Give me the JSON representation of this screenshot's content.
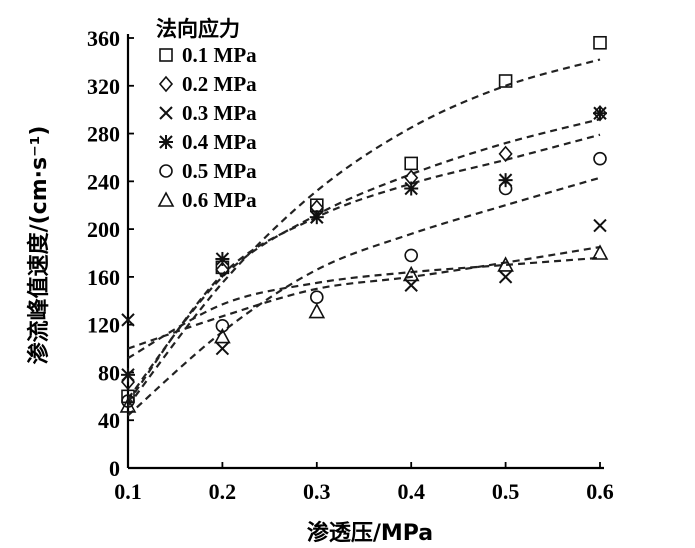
{
  "chart_data": {
    "type": "scatter",
    "title": "",
    "xlabel": "渗透压/MPa",
    "ylabel": "渗流峰值速度/(cm·s⁻¹)",
    "xlim": [
      0.1,
      0.6
    ],
    "ylim": [
      0,
      360
    ],
    "x_ticks": [
      "0.1",
      "0.2",
      "0.3",
      "0.4",
      "0.5",
      "0.6"
    ],
    "y_ticks": [
      "0",
      "40",
      "80",
      "120",
      "160",
      "200",
      "240",
      "280",
      "320",
      "360"
    ],
    "grid": false,
    "legend_title": "法向应力",
    "legend_position": "top-left",
    "x": [
      0.1,
      0.2,
      0.3,
      0.4,
      0.5,
      0.6
    ],
    "series": [
      {
        "name": "0.1 MPa",
        "marker": "square",
        "values": [
          60,
          168,
          220,
          255,
          324,
          356
        ],
        "fit": [
          52,
          155,
          232,
          285,
          320,
          342
        ]
      },
      {
        "name": "0.2 MPa",
        "marker": "diamond",
        "values": [
          72,
          166,
          218,
          243,
          263,
          297
        ],
        "fit": [
          58,
          160,
          212,
          246,
          272,
          292
        ]
      },
      {
        "name": "0.3 MPa",
        "marker": "x",
        "values": [
          124,
          100,
          210,
          153,
          160,
          203
        ],
        "fit": [
          100,
          127,
          150,
          160,
          172,
          185
        ]
      },
      {
        "name": "0.4 MPa",
        "marker": "asterisk",
        "values": [
          78,
          175,
          210,
          234,
          241,
          297
        ],
        "fit": [
          55,
          162,
          210,
          238,
          258,
          279
        ]
      },
      {
        "name": "0.5 MPa",
        "marker": "circle",
        "values": [
          56,
          119,
          143,
          178,
          234,
          259
        ],
        "fit": [
          44,
          114,
          166,
          196,
          220,
          243
        ]
      },
      {
        "name": "0.6 MPa",
        "marker": "triangle",
        "values": [
          52,
          110,
          131,
          162,
          170,
          180
        ],
        "fit": [
          92,
          137,
          155,
          164,
          170,
          176
        ]
      }
    ]
  }
}
